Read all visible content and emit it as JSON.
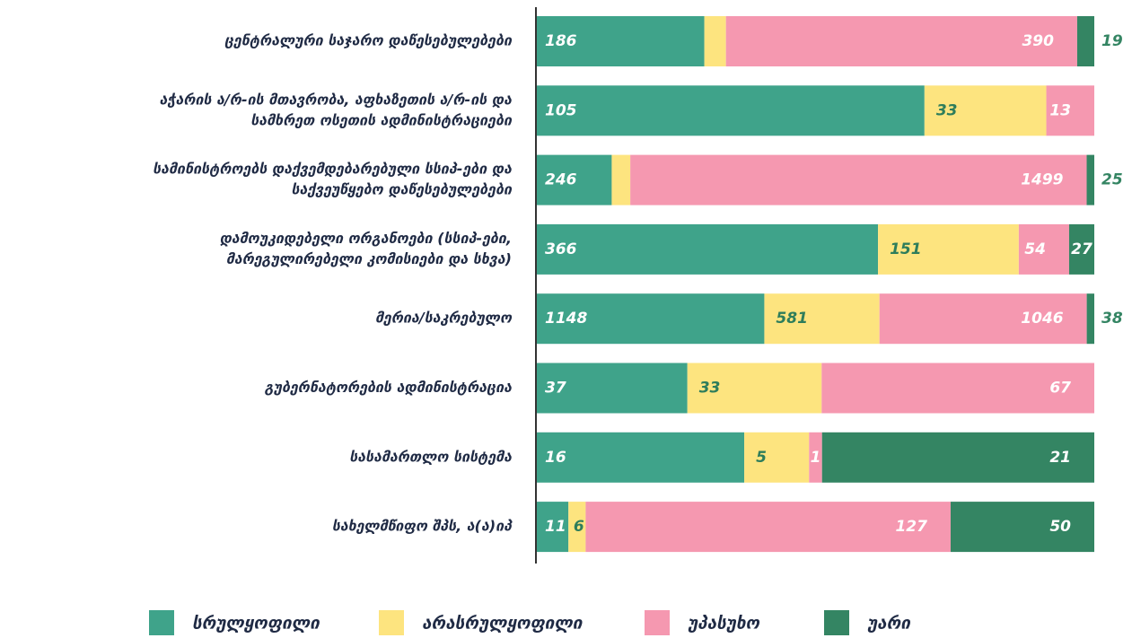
{
  "chart_data": {
    "type": "stacked-bar-percent",
    "categories": [
      [
        "ცენტრალური საჯარო დაწესებულებები"
      ],
      [
        "აჭარის ა/რ-ის მთავრობა, აფხაზეთის ა/რ-ის და",
        "სამხრეთ ოსეთის ადმინისტრაციები"
      ],
      [
        "სამინისტროებს დაქვემდებარებული სსიპ-ები და",
        "საქვეუწყებო დაწესებულებები"
      ],
      [
        "დამოუკიდებელი ორგანოები (სსიპ-ები,",
        "მარეგულირებელი კომისიები და სხვა)"
      ],
      [
        "მერია/საკრებულო"
      ],
      [
        "გუბერნატორების ადმინისტრაცია"
      ],
      [
        "სასამართლო სისტემა"
      ],
      [
        "სახელმწიფო შპს, ა(ა)იპ"
      ]
    ],
    "series": [
      {
        "name": "სრულყოფილი",
        "color": "#3fa38a",
        "values": [
          186,
          105,
          246,
          366,
          1148,
          37,
          16,
          11
        ]
      },
      {
        "name": "არასრულყოფილი",
        "color": "#fde47f",
        "values": [
          24,
          33,
          61,
          151,
          581,
          33,
          5,
          6
        ]
      },
      {
        "name": "უპასუხო",
        "color": "#f598b0",
        "values": [
          390,
          13,
          1499,
          54,
          1046,
          67,
          1,
          127
        ]
      },
      {
        "name": "უარი",
        "color": "#348563",
        "values": [
          19,
          null,
          25,
          27,
          38,
          null,
          21,
          50
        ]
      }
    ]
  }
}
